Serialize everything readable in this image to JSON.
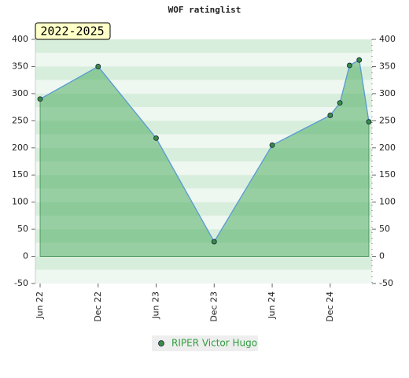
{
  "chart_data": {
    "type": "area",
    "title": "WOF ratinglist",
    "annotation": "2022-2025",
    "x": [
      "2022-06",
      "2022-12",
      "2023-06",
      "2023-12",
      "2024-06",
      "2024-12",
      "2025-01",
      "2025-02",
      "2025-03",
      "2025-04"
    ],
    "series": [
      {
        "name": "RIPER Victor Hugo",
        "color": "#5b9bd5",
        "marker_color": "#3a8a4a",
        "values": [
          290,
          350,
          218,
          27,
          205,
          260,
          283,
          352,
          362,
          248
        ]
      }
    ],
    "xlim": [
      "2022-06",
      "2025-04"
    ],
    "xticks": [
      {
        "value": "2022-06",
        "label": "Jun 22"
      },
      {
        "value": "2022-12",
        "label": "Dec 22"
      },
      {
        "value": "2023-06",
        "label": "Jun 23"
      },
      {
        "value": "2023-12",
        "label": "Dec 23"
      },
      {
        "value": "2024-06",
        "label": "Jun 24"
      },
      {
        "value": "2024-12",
        "label": "Dec 24"
      }
    ],
    "ylim": [
      -50,
      400
    ],
    "yticks": [
      -50,
      0,
      50,
      100,
      150,
      200,
      250,
      300,
      350,
      400
    ],
    "y2lim": [
      -50,
      400
    ],
    "y2ticks": [
      -50,
      0,
      50,
      100,
      150,
      200,
      250,
      300,
      350,
      400
    ],
    "legend": "bottom"
  }
}
